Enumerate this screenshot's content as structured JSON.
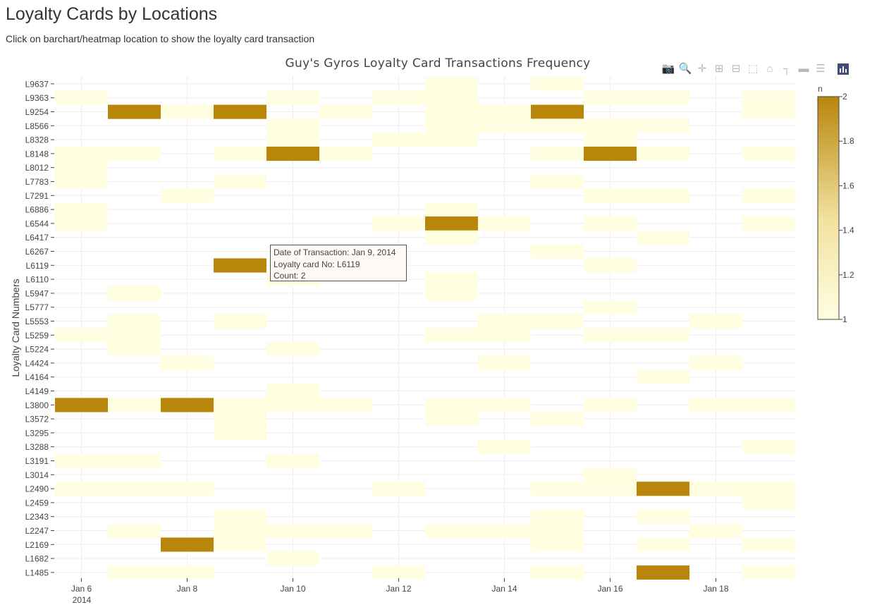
{
  "page": {
    "title": "Loyalty Cards by Locations",
    "subtitle": "Click on barchart/heatmap location to show the loyalty card transaction"
  },
  "colors": {
    "low": "#fffee0",
    "high": "#b8860b",
    "grid": "#eeeeee"
  },
  "modebar": {
    "buttons": [
      "camera-icon",
      "zoom-icon",
      "pan-icon",
      "zoom-in-icon",
      "zoom-out-icon",
      "autoscale-icon",
      "reset-axes-icon",
      "spike-lines-icon",
      "hover-closest-icon",
      "hover-compare-icon",
      "plotly-logo"
    ]
  },
  "tooltip": {
    "line1": "Date of Transaction: Jan 9, 2014",
    "line2": " Loyalty card No: L6119",
    "line3": " Count: 2"
  },
  "chart_data": {
    "type": "heatmap",
    "title": "Guy's Gyros Loyalty Card Transactions Frequency",
    "xlabel": "",
    "ylabel": "Loyalty Card Numbers",
    "x_ticks": [
      "Jan 6",
      "Jan 8",
      "Jan 10",
      "Jan 12",
      "Jan 14",
      "Jan 16",
      "Jan 18"
    ],
    "x_tick_days": [
      6,
      8,
      10,
      12,
      14,
      16,
      18
    ],
    "x_year_label": "2014",
    "x_days": [
      6,
      7,
      8,
      9,
      10,
      11,
      12,
      13,
      14,
      15,
      16,
      17,
      18,
      19
    ],
    "xlim": [
      5.5,
      19.5
    ],
    "colorbar": {
      "title": "n",
      "min": 1,
      "max": 2,
      "ticks": [
        "2",
        "1.8",
        "1.6",
        "1.4",
        "1.2",
        "1"
      ],
      "tick_values": [
        2,
        1.8,
        1.6,
        1.4,
        1.2,
        1
      ]
    },
    "y_categories": [
      "L9637",
      "L9363",
      "L9254",
      "L8566",
      "L8328",
      "L8148",
      "L8012",
      "L7783",
      "L7291",
      "L6886",
      "L6544",
      "L6417",
      "L6267",
      "L6119",
      "L6110",
      "L5947",
      "L5777",
      "L5553",
      "L5259",
      "L5224",
      "L4424",
      "L4164",
      "L4149",
      "L3800",
      "L3572",
      "L3295",
      "L3288",
      "L3191",
      "L3014",
      "L2490",
      "L2459",
      "L2343",
      "L2247",
      "L2169",
      "L1682",
      "L1485"
    ],
    "cells": [
      [
        "L9637",
        13,
        1
      ],
      [
        "L9637",
        15,
        1
      ],
      [
        "L9363",
        6,
        1
      ],
      [
        "L9363",
        10,
        1
      ],
      [
        "L9363",
        12,
        1
      ],
      [
        "L9363",
        13,
        1
      ],
      [
        "L9363",
        16,
        1
      ],
      [
        "L9363",
        17,
        1
      ],
      [
        "L9363",
        19,
        1
      ],
      [
        "L9254",
        7,
        2
      ],
      [
        "L9254",
        8,
        1
      ],
      [
        "L9254",
        9,
        2
      ],
      [
        "L9254",
        11,
        1
      ],
      [
        "L9254",
        13,
        1
      ],
      [
        "L9254",
        14,
        1
      ],
      [
        "L9254",
        15,
        2
      ],
      [
        "L9254",
        19,
        1
      ],
      [
        "L8566",
        10,
        1
      ],
      [
        "L8566",
        13,
        1
      ],
      [
        "L8566",
        14,
        1
      ],
      [
        "L8566",
        15,
        1
      ],
      [
        "L8566",
        16,
        1
      ],
      [
        "L8566",
        17,
        1
      ],
      [
        "L8328",
        10,
        1
      ],
      [
        "L8328",
        12,
        1
      ],
      [
        "L8328",
        13,
        1
      ],
      [
        "L8328",
        16,
        1
      ],
      [
        "L8148",
        6,
        1
      ],
      [
        "L8148",
        7,
        1
      ],
      [
        "L8148",
        9,
        1
      ],
      [
        "L8148",
        10,
        2
      ],
      [
        "L8148",
        11,
        1
      ],
      [
        "L8148",
        15,
        1
      ],
      [
        "L8148",
        16,
        2
      ],
      [
        "L8148",
        17,
        1
      ],
      [
        "L8148",
        19,
        1
      ],
      [
        "L8012",
        6,
        1
      ],
      [
        "L7783",
        6,
        1
      ],
      [
        "L7783",
        9,
        1
      ],
      [
        "L7783",
        15,
        1
      ],
      [
        "L7291",
        8,
        1
      ],
      [
        "L7291",
        16,
        1
      ],
      [
        "L7291",
        17,
        1
      ],
      [
        "L7291",
        19,
        1
      ],
      [
        "L6886",
        6,
        1
      ],
      [
        "L6886",
        13,
        1
      ],
      [
        "L6544",
        6,
        1
      ],
      [
        "L6544",
        12,
        1
      ],
      [
        "L6544",
        13,
        2
      ],
      [
        "L6544",
        14,
        1
      ],
      [
        "L6544",
        16,
        1
      ],
      [
        "L6544",
        19,
        1
      ],
      [
        "L6417",
        13,
        1
      ],
      [
        "L6417",
        17,
        1
      ],
      [
        "L6267",
        15,
        1
      ],
      [
        "L6119",
        9,
        2
      ],
      [
        "L6119",
        16,
        1
      ],
      [
        "L6110",
        10,
        1
      ],
      [
        "L6110",
        13,
        1
      ],
      [
        "L5947",
        7,
        1
      ],
      [
        "L5947",
        13,
        1
      ],
      [
        "L5777",
        16,
        1
      ],
      [
        "L5553",
        7,
        1
      ],
      [
        "L5553",
        9,
        1
      ],
      [
        "L5553",
        14,
        1
      ],
      [
        "L5553",
        15,
        1
      ],
      [
        "L5553",
        18,
        1
      ],
      [
        "L5259",
        6,
        1
      ],
      [
        "L5259",
        7,
        1
      ],
      [
        "L5259",
        13,
        1
      ],
      [
        "L5259",
        14,
        1
      ],
      [
        "L5259",
        16,
        1
      ],
      [
        "L5259",
        17,
        1
      ],
      [
        "L5224",
        7,
        1
      ],
      [
        "L5224",
        10,
        1
      ],
      [
        "L4424",
        8,
        1
      ],
      [
        "L4424",
        14,
        1
      ],
      [
        "L4424",
        18,
        1
      ],
      [
        "L4164",
        17,
        1
      ],
      [
        "L4149",
        10,
        1
      ],
      [
        "L3800",
        6,
        2
      ],
      [
        "L3800",
        7,
        1
      ],
      [
        "L3800",
        8,
        2
      ],
      [
        "L3800",
        9,
        1
      ],
      [
        "L3800",
        10,
        1
      ],
      [
        "L3800",
        11,
        1
      ],
      [
        "L3800",
        13,
        1
      ],
      [
        "L3800",
        14,
        1
      ],
      [
        "L3800",
        16,
        1
      ],
      [
        "L3800",
        18,
        1
      ],
      [
        "L3800",
        19,
        1
      ],
      [
        "L3572",
        9,
        1
      ],
      [
        "L3572",
        13,
        1
      ],
      [
        "L3572",
        15,
        1
      ],
      [
        "L3295",
        9,
        1
      ],
      [
        "L3288",
        14,
        1
      ],
      [
        "L3288",
        19,
        1
      ],
      [
        "L3191",
        6,
        1
      ],
      [
        "L3191",
        7,
        1
      ],
      [
        "L3191",
        10,
        1
      ],
      [
        "L3014",
        16,
        1
      ],
      [
        "L2490",
        6,
        1
      ],
      [
        "L2490",
        7,
        1
      ],
      [
        "L2490",
        8,
        1
      ],
      [
        "L2490",
        12,
        1
      ],
      [
        "L2490",
        15,
        1
      ],
      [
        "L2490",
        16,
        1
      ],
      [
        "L2490",
        17,
        2
      ],
      [
        "L2490",
        18,
        1
      ],
      [
        "L2490",
        19,
        1
      ],
      [
        "L2459",
        19,
        1
      ],
      [
        "L2343",
        9,
        1
      ],
      [
        "L2343",
        15,
        1
      ],
      [
        "L2343",
        17,
        1
      ],
      [
        "L2247",
        7,
        1
      ],
      [
        "L2247",
        9,
        1
      ],
      [
        "L2247",
        10,
        1
      ],
      [
        "L2247",
        11,
        1
      ],
      [
        "L2247",
        13,
        1
      ],
      [
        "L2247",
        14,
        1
      ],
      [
        "L2247",
        15,
        1
      ],
      [
        "L2247",
        18,
        1
      ],
      [
        "L2169",
        8,
        2
      ],
      [
        "L2169",
        9,
        1
      ],
      [
        "L2169",
        15,
        1
      ],
      [
        "L2169",
        17,
        1
      ],
      [
        "L2169",
        19,
        1
      ],
      [
        "L1682",
        10,
        1
      ],
      [
        "L1485",
        7,
        1
      ],
      [
        "L1485",
        8,
        1
      ],
      [
        "L1485",
        12,
        1
      ],
      [
        "L1485",
        15,
        1
      ],
      [
        "L1485",
        17,
        2
      ],
      [
        "L1485",
        19,
        1
      ]
    ]
  }
}
